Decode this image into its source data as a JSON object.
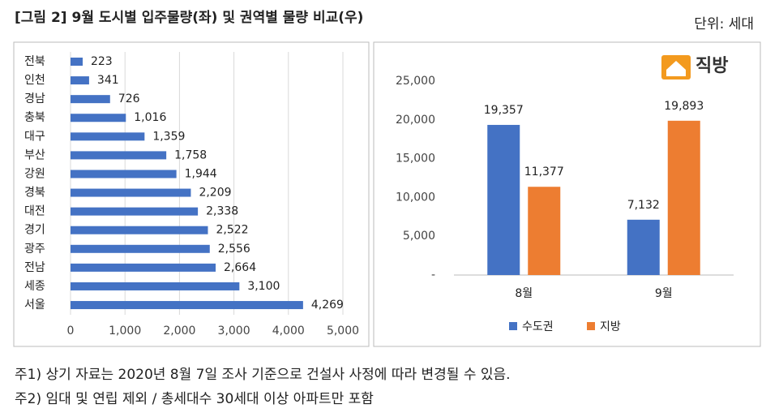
{
  "title": "[그림 2] 9월 도시별 입주물량(좌) 및 권역별 물량 비교(우)",
  "unit": "단위: 세대",
  "logo": "직방",
  "notes": [
    "주1) 상기 자료는 2020년 8월 7일 조사 기준으로 건설사 사정에 따라 변경될 수 있음.",
    "주2) 임대 및 연립 제외 / 총세대수 30세대 이상 아파트만 포함"
  ],
  "chart_data": [
    {
      "type": "barh",
      "categories": [
        "전북",
        "인천",
        "경남",
        "충북",
        "대구",
        "부산",
        "강원",
        "경북",
        "대전",
        "경기",
        "광주",
        "전남",
        "세종",
        "서울"
      ],
      "values": [
        223,
        341,
        726,
        1016,
        1359,
        1758,
        1944,
        2209,
        2338,
        2522,
        2556,
        2664,
        3100,
        4269
      ],
      "value_labels": [
        "223",
        "341",
        "726",
        "1,016",
        "1,359",
        "1,758",
        "1,944",
        "2,209",
        "2,338",
        "2,522",
        "2,556",
        "2,664",
        "3,100",
        "4,269"
      ],
      "color": "#4472c4",
      "xlim": [
        0,
        5000
      ],
      "xticks": [
        0,
        {
          "value": 1000,
          "label": "1,000"
        },
        {
          "value": 2000,
          "label": "2,000"
        },
        {
          "value": 3000,
          "label": "3,000"
        },
        {
          "value": 4000,
          "label": "4,000"
        },
        {
          "value": 5000,
          "label": "5,000"
        }
      ],
      "grid": true
    },
    {
      "type": "bar",
      "categories": [
        "8월",
        "9월"
      ],
      "series": [
        {
          "name": "수도권",
          "color": "#4472c4",
          "values": [
            19357,
            7132
          ],
          "value_labels": [
            "19,357",
            "7,132"
          ]
        },
        {
          "name": "지방",
          "color": "#ed7d31",
          "values": [
            11377,
            19893
          ],
          "value_labels": [
            "11,377",
            "19,893"
          ]
        }
      ],
      "ylim": [
        0,
        25000
      ],
      "yticks": [
        {
          "value": 0,
          "label": "-"
        },
        {
          "value": 5000,
          "label": "5,000"
        },
        {
          "value": 10000,
          "label": "10,000"
        },
        {
          "value": 15000,
          "label": "15,000"
        },
        {
          "value": 20000,
          "label": "20,000"
        },
        {
          "value": 25000,
          "label": "25,000"
        }
      ],
      "legend": "bottom"
    }
  ]
}
